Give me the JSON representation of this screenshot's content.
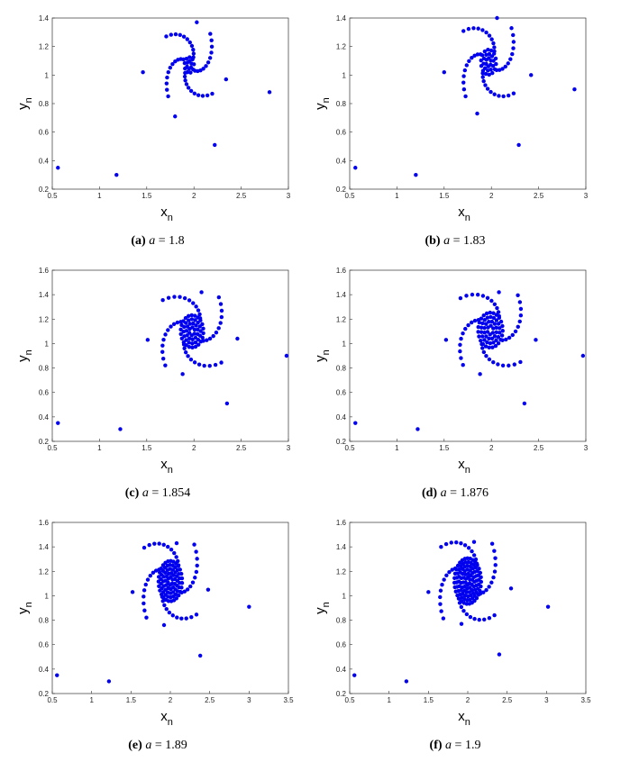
{
  "chart_data": [
    {
      "type": "scatter",
      "panel_label": "(a)",
      "param_name": "a",
      "param_value": "1.8",
      "xlabel": "x",
      "xlabel_sub": "n",
      "ylabel": "y",
      "ylabel_sub": "n",
      "xlim": [
        0.5,
        3
      ],
      "ylim": [
        0.2,
        1.4
      ],
      "xticks": [
        "0.5",
        "1",
        "1.5",
        "2",
        "2.5",
        "3"
      ],
      "yticks": [
        "0.2",
        "0.4",
        "0.6",
        "0.8",
        "1",
        "1.2",
        "1.4"
      ],
      "center": [
        1.95,
        1.07
      ],
      "arms_end_radius": 0.33,
      "core_radius": 0.05,
      "outliers": [
        [
          0.56,
          0.35
        ],
        [
          1.18,
          0.3
        ],
        [
          2.22,
          0.51
        ],
        [
          2.8,
          0.88
        ],
        [
          1.46,
          1.02
        ],
        [
          2.34,
          0.97
        ],
        [
          2.03,
          1.37
        ],
        [
          1.8,
          0.71
        ]
      ]
    },
    {
      "type": "scatter",
      "panel_label": "(b)",
      "param_name": "a",
      "param_value": "1.83",
      "xlabel": "x",
      "xlabel_sub": "n",
      "ylabel": "y",
      "ylabel_sub": "n",
      "xlim": [
        0.5,
        3
      ],
      "ylim": [
        0.2,
        1.4
      ],
      "xticks": [
        "0.5",
        "1",
        "1.5",
        "2",
        "2.5",
        "3"
      ],
      "yticks": [
        "0.2",
        "0.4",
        "0.6",
        "0.8",
        "1",
        "1.2",
        "1.4"
      ],
      "center": [
        1.97,
        1.09
      ],
      "arms_end_radius": 0.36,
      "core_radius": 0.08,
      "outliers": [
        [
          0.56,
          0.35
        ],
        [
          1.2,
          0.3
        ],
        [
          2.29,
          0.51
        ],
        [
          2.88,
          0.9
        ],
        [
          1.5,
          1.02
        ],
        [
          2.42,
          1.0
        ],
        [
          2.06,
          1.4
        ],
        [
          1.85,
          0.73
        ]
      ]
    },
    {
      "type": "scatter",
      "panel_label": "(c)",
      "param_name": "a",
      "param_value": "1.854",
      "xlabel": "x",
      "xlabel_sub": "n",
      "ylabel": "y",
      "ylabel_sub": "n",
      "xlim": [
        0.5,
        3
      ],
      "ylim": [
        0.2,
        1.6
      ],
      "xticks": [
        "0.5",
        "1",
        "1.5",
        "2",
        "2.5",
        "3"
      ],
      "yticks": [
        "0.2",
        "0.4",
        "0.6",
        "0.8",
        "1",
        "1.2",
        "1.4",
        "1.6"
      ],
      "center": [
        1.98,
        1.1
      ],
      "arms_end_radius": 0.42,
      "core_radius": 0.12,
      "outliers": [
        [
          0.56,
          0.35
        ],
        [
          1.22,
          0.3
        ],
        [
          2.35,
          0.51
        ],
        [
          2.98,
          0.9
        ],
        [
          1.51,
          1.03
        ],
        [
          2.46,
          1.04
        ],
        [
          2.08,
          1.42
        ],
        [
          1.88,
          0.75
        ]
      ]
    },
    {
      "type": "scatter",
      "panel_label": "(d)",
      "param_name": "a",
      "param_value": "1.876",
      "xlabel": "x",
      "xlabel_sub": "n",
      "ylabel": "y",
      "ylabel_sub": "n",
      "xlim": [
        0.5,
        3
      ],
      "ylim": [
        0.2,
        1.6
      ],
      "xticks": [
        "0.5",
        "1",
        "1.5",
        "2",
        "2.5",
        "3"
      ],
      "yticks": [
        "0.2",
        "0.4",
        "0.6",
        "0.8",
        "1",
        "1.2",
        "1.4",
        "1.6"
      ],
      "center": [
        1.99,
        1.11
      ],
      "arms_end_radius": 0.43,
      "core_radius": 0.13,
      "outliers": [
        [
          0.56,
          0.35
        ],
        [
          1.22,
          0.3
        ],
        [
          2.35,
          0.51
        ],
        [
          2.97,
          0.9
        ],
        [
          1.52,
          1.03
        ],
        [
          2.47,
          1.03
        ],
        [
          2.08,
          1.42
        ],
        [
          1.88,
          0.75
        ]
      ]
    },
    {
      "type": "scatter",
      "panel_label": "(e)",
      "param_name": "a",
      "param_value": "1.89",
      "xlabel": "x",
      "xlabel_sub": "n",
      "ylabel": "y",
      "ylabel_sub": "n",
      "xlim": [
        0.5,
        3.5
      ],
      "ylim": [
        0.2,
        1.6
      ],
      "xticks": [
        "0.5",
        "1",
        "1.5",
        "2",
        "2.5",
        "3",
        "3.5"
      ],
      "yticks": [
        "0.2",
        "0.4",
        "0.6",
        "0.8",
        "1",
        "1.2",
        "1.4",
        "1.6"
      ],
      "center": [
        2.0,
        1.12
      ],
      "arms_end_radius": 0.45,
      "core_radius": 0.15,
      "outliers": [
        [
          0.56,
          0.35
        ],
        [
          1.22,
          0.3
        ],
        [
          2.38,
          0.51
        ],
        [
          3.0,
          0.91
        ],
        [
          1.52,
          1.03
        ],
        [
          2.48,
          1.05
        ],
        [
          2.08,
          1.43
        ],
        [
          1.92,
          0.76
        ]
      ]
    },
    {
      "type": "scatter",
      "panel_label": "(f)",
      "param_name": "a",
      "param_value": "1.9",
      "xlabel": "x",
      "xlabel_sub": "n",
      "ylabel": "y",
      "ylabel_sub": "n",
      "xlim": [
        0.5,
        3.5
      ],
      "ylim": [
        0.2,
        1.6
      ],
      "xticks": [
        "0.5",
        "1",
        "1.5",
        "2",
        "2.5",
        "3",
        "3.5"
      ],
      "yticks": [
        "0.2",
        "0.4",
        "0.6",
        "0.8",
        "1",
        "1.2",
        "1.4",
        "1.6"
      ],
      "center": [
        2.0,
        1.12
      ],
      "arms_end_radius": 0.46,
      "core_radius": 0.17,
      "outliers": [
        [
          0.56,
          0.35
        ],
        [
          1.22,
          0.3
        ],
        [
          2.4,
          0.52
        ],
        [
          3.02,
          0.91
        ],
        [
          1.5,
          1.03
        ],
        [
          2.55,
          1.06
        ],
        [
          2.08,
          1.44
        ],
        [
          1.92,
          0.77
        ]
      ]
    }
  ],
  "colors": {
    "marker": "#0000ee",
    "axis": "#333333",
    "background": "#ffffff"
  }
}
